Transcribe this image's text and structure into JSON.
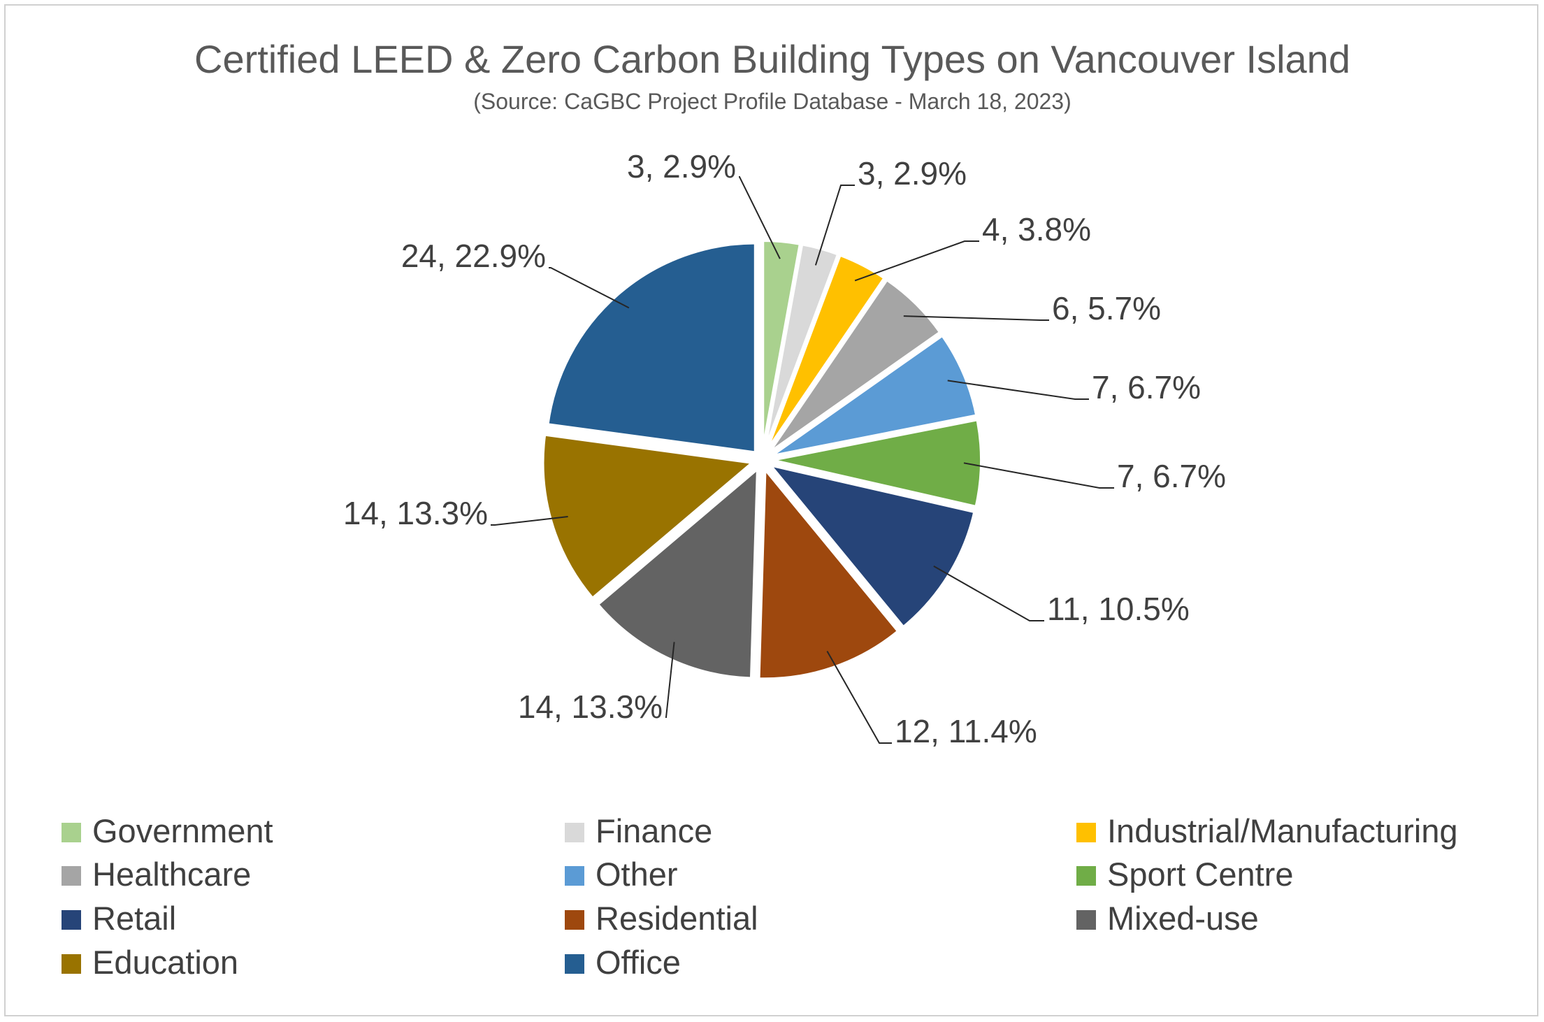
{
  "chart_data": {
    "type": "pie",
    "title": "Certified LEED & Zero Carbon Building Types on Vancouver Island",
    "subtitle": "(Source: CaGBC Project Profile Database - March 18, 2023)",
    "legend_position": "bottom",
    "slices": [
      {
        "name": "Government",
        "value": 3,
        "label": "3, 2.9%",
        "color": "#A9D18E"
      },
      {
        "name": "Finance",
        "value": 3,
        "label": "3, 2.9%",
        "color": "#D9D9D9"
      },
      {
        "name": "Industrial/Manufacturing",
        "value": 4,
        "label": "4, 3.8%",
        "color": "#FFC000"
      },
      {
        "name": "Healthcare",
        "value": 6,
        "label": "6, 5.7%",
        "color": "#A5A5A5"
      },
      {
        "name": "Other",
        "value": 7,
        "label": "7, 6.7%",
        "color": "#5B9BD5"
      },
      {
        "name": "Sport Centre",
        "value": 7,
        "label": "7, 6.7%",
        "color": "#70AD47"
      },
      {
        "name": "Retail",
        "value": 11,
        "label": "11, 10.5%",
        "color": "#264478"
      },
      {
        "name": "Residential",
        "value": 12,
        "label": "12, 11.4%",
        "color": "#9E480E"
      },
      {
        "name": "Mixed-use",
        "value": 14,
        "label": "14, 13.3%",
        "color": "#636363"
      },
      {
        "name": "Education",
        "value": 14,
        "label": "14, 13.3%",
        "color": "#997300"
      },
      {
        "name": "Office",
        "value": 24,
        "label": "24, 22.9%",
        "color": "#255E91"
      }
    ]
  }
}
